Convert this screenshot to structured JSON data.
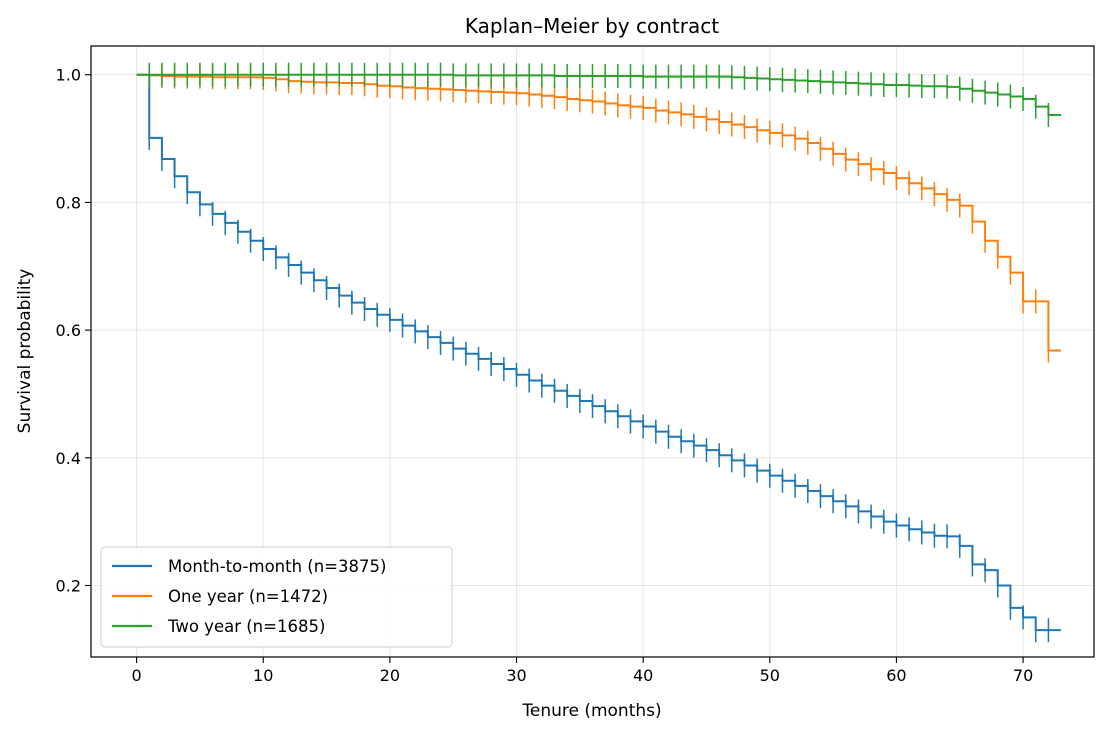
{
  "chart_data": {
    "type": "line",
    "title": "Kaplan–Meier by contract",
    "xlabel": "Tenure (months)",
    "ylabel": "Survival probability",
    "xlim": [
      -3.6,
      75.6
    ],
    "ylim": [
      0.088,
      1.045
    ],
    "xticks": [
      0,
      10,
      20,
      30,
      40,
      50,
      60,
      70
    ],
    "yticks": [
      0.2,
      0.4,
      0.6,
      0.8,
      1.0
    ],
    "xtick_labels": [
      "0",
      "10",
      "20",
      "30",
      "40",
      "50",
      "60",
      "70"
    ],
    "ytick_labels": [
      "0.2",
      "0.4",
      "0.6",
      "0.8",
      "1.0"
    ],
    "grid": true,
    "legend": "lower-left",
    "series": [
      {
        "name": "Month-to-month (n=3875)",
        "color": "#1f77b4",
        "x": [
          0,
          1,
          2,
          3,
          4,
          5,
          6,
          7,
          8,
          9,
          10,
          11,
          12,
          13,
          14,
          15,
          16,
          17,
          18,
          19,
          20,
          21,
          22,
          23,
          24,
          25,
          26,
          27,
          28,
          29,
          30,
          31,
          32,
          33,
          34,
          35,
          36,
          37,
          38,
          39,
          40,
          41,
          42,
          43,
          44,
          45,
          46,
          47,
          48,
          49,
          50,
          51,
          52,
          53,
          54,
          55,
          56,
          57,
          58,
          59,
          60,
          61,
          62,
          63,
          64,
          65,
          66,
          67,
          68,
          69,
          70,
          71,
          72,
          73
        ],
        "y": [
          1.0,
          0.901,
          0.868,
          0.841,
          0.816,
          0.797,
          0.782,
          0.768,
          0.754,
          0.74,
          0.727,
          0.714,
          0.702,
          0.69,
          0.678,
          0.666,
          0.654,
          0.643,
          0.633,
          0.624,
          0.616,
          0.607,
          0.598,
          0.589,
          0.58,
          0.571,
          0.563,
          0.555,
          0.547,
          0.539,
          0.53,
          0.521,
          0.513,
          0.505,
          0.497,
          0.489,
          0.481,
          0.473,
          0.465,
          0.457,
          0.449,
          0.441,
          0.433,
          0.426,
          0.419,
          0.412,
          0.404,
          0.396,
          0.388,
          0.38,
          0.372,
          0.364,
          0.356,
          0.348,
          0.34,
          0.332,
          0.324,
          0.316,
          0.308,
          0.3,
          0.294,
          0.288,
          0.283,
          0.278,
          0.277,
          0.262,
          0.233,
          0.224,
          0.2,
          0.165,
          0.15,
          0.13,
          0.13,
          0.13
        ],
        "censor_x": [
          1,
          2,
          3,
          4,
          5,
          6,
          7,
          8,
          9,
          10,
          11,
          12,
          13,
          14,
          15,
          16,
          17,
          18,
          19,
          20,
          21,
          22,
          23,
          24,
          25,
          26,
          27,
          28,
          29,
          30,
          31,
          32,
          33,
          34,
          35,
          36,
          37,
          38,
          39,
          40,
          41,
          42,
          43,
          44,
          45,
          46,
          47,
          48,
          49,
          50,
          51,
          52,
          53,
          54,
          55,
          56,
          57,
          58,
          59,
          60,
          61,
          62,
          63,
          64,
          65,
          66,
          67,
          68,
          69,
          70,
          71,
          72
        ]
      },
      {
        "name": "One year (n=1472)",
        "color": "#ff7f0e",
        "x": [
          0,
          1,
          2,
          3,
          4,
          5,
          6,
          7,
          8,
          9,
          10,
          11,
          12,
          13,
          14,
          15,
          16,
          17,
          18,
          19,
          20,
          21,
          22,
          23,
          24,
          25,
          26,
          27,
          28,
          29,
          30,
          31,
          32,
          33,
          34,
          35,
          36,
          37,
          38,
          39,
          40,
          41,
          42,
          43,
          44,
          45,
          46,
          47,
          48,
          49,
          50,
          51,
          52,
          53,
          54,
          55,
          56,
          57,
          58,
          59,
          60,
          61,
          62,
          63,
          64,
          65,
          66,
          67,
          68,
          69,
          70,
          71,
          72,
          73
        ],
        "y": [
          1.0,
          0.999,
          0.998,
          0.997,
          0.997,
          0.997,
          0.996,
          0.996,
          0.996,
          0.996,
          0.995,
          0.993,
          0.99,
          0.989,
          0.988,
          0.988,
          0.987,
          0.987,
          0.985,
          0.983,
          0.982,
          0.98,
          0.979,
          0.978,
          0.977,
          0.976,
          0.975,
          0.974,
          0.973,
          0.972,
          0.971,
          0.969,
          0.967,
          0.965,
          0.962,
          0.96,
          0.958,
          0.955,
          0.952,
          0.95,
          0.948,
          0.944,
          0.941,
          0.938,
          0.934,
          0.93,
          0.926,
          0.922,
          0.918,
          0.913,
          0.909,
          0.905,
          0.9,
          0.893,
          0.884,
          0.876,
          0.867,
          0.86,
          0.852,
          0.846,
          0.838,
          0.83,
          0.822,
          0.813,
          0.804,
          0.795,
          0.77,
          0.74,
          0.715,
          0.69,
          0.645,
          0.645,
          0.568,
          0.568
        ],
        "censor_x": [
          1,
          2,
          3,
          4,
          5,
          6,
          7,
          8,
          9,
          10,
          11,
          12,
          13,
          14,
          15,
          16,
          17,
          18,
          19,
          20,
          21,
          22,
          23,
          24,
          25,
          26,
          27,
          28,
          29,
          30,
          31,
          32,
          33,
          34,
          35,
          36,
          37,
          38,
          39,
          40,
          41,
          42,
          43,
          44,
          45,
          46,
          47,
          48,
          49,
          50,
          51,
          52,
          53,
          54,
          55,
          56,
          57,
          58,
          59,
          60,
          61,
          62,
          63,
          64,
          65,
          66,
          67,
          68,
          69,
          70,
          71,
          72
        ]
      },
      {
        "name": "Two year (n=1685)",
        "color": "#2ca02c",
        "x": [
          0,
          1,
          2,
          3,
          4,
          5,
          6,
          7,
          8,
          9,
          10,
          11,
          12,
          13,
          14,
          15,
          16,
          17,
          18,
          19,
          20,
          21,
          22,
          23,
          24,
          25,
          26,
          27,
          28,
          29,
          30,
          31,
          32,
          33,
          34,
          35,
          36,
          37,
          38,
          39,
          40,
          41,
          42,
          43,
          44,
          45,
          46,
          47,
          48,
          49,
          50,
          51,
          52,
          53,
          54,
          55,
          56,
          57,
          58,
          59,
          60,
          61,
          62,
          63,
          64,
          65,
          66,
          67,
          68,
          69,
          70,
          71,
          72,
          73
        ],
        "y": [
          1.0,
          1.0,
          1.0,
          1.0,
          1.0,
          1.0,
          1.0,
          1.0,
          1.0,
          1.0,
          1.0,
          1.0,
          1.0,
          1.0,
          1.0,
          1.0,
          1.0,
          1.0,
          1.0,
          1.0,
          1.0,
          1.0,
          1.0,
          1.0,
          1.0,
          0.999,
          0.999,
          0.999,
          0.999,
          0.999,
          0.999,
          0.999,
          0.999,
          0.998,
          0.998,
          0.998,
          0.998,
          0.998,
          0.998,
          0.998,
          0.997,
          0.997,
          0.997,
          0.997,
          0.997,
          0.997,
          0.997,
          0.996,
          0.995,
          0.994,
          0.993,
          0.992,
          0.991,
          0.99,
          0.989,
          0.988,
          0.987,
          0.986,
          0.985,
          0.984,
          0.984,
          0.983,
          0.982,
          0.982,
          0.981,
          0.978,
          0.975,
          0.972,
          0.969,
          0.966,
          0.962,
          0.95,
          0.937,
          0.937
        ],
        "censor_x": [
          1,
          2,
          3,
          4,
          5,
          6,
          7,
          8,
          9,
          10,
          11,
          12,
          13,
          14,
          15,
          16,
          17,
          18,
          19,
          20,
          21,
          22,
          23,
          24,
          25,
          26,
          27,
          28,
          29,
          30,
          31,
          32,
          33,
          34,
          35,
          36,
          37,
          38,
          39,
          40,
          41,
          42,
          43,
          44,
          45,
          46,
          47,
          48,
          49,
          50,
          51,
          52,
          53,
          54,
          55,
          56,
          57,
          58,
          59,
          60,
          61,
          62,
          63,
          64,
          65,
          66,
          67,
          68,
          69,
          70,
          71,
          72
        ]
      }
    ]
  }
}
